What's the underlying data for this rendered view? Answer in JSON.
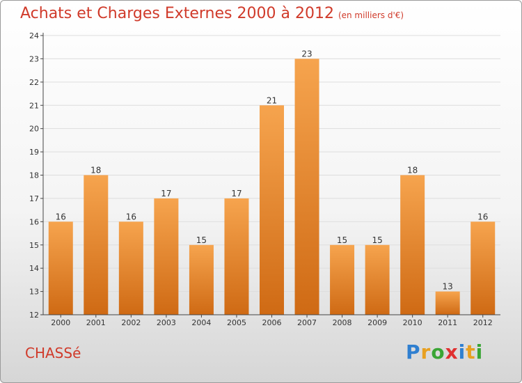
{
  "header": {
    "title": "Achats et Charges Externes 2000 à 2012",
    "subtitle": "(en milliers d'€)"
  },
  "footer": {
    "place": "CHASSé",
    "logo_text": "Proxiti",
    "logo_letters": [
      {
        "ch": "P",
        "color": "#2f7fd0"
      },
      {
        "ch": "r",
        "color": "#e8a020"
      },
      {
        "ch": "o",
        "color": "#3aa535"
      },
      {
        "ch": "x",
        "color": "#e03030"
      },
      {
        "ch": "i",
        "color": "#2f7fd0"
      },
      {
        "ch": "t",
        "color": "#e8a020"
      },
      {
        "ch": "i",
        "color": "#3aa535"
      }
    ]
  },
  "colors": {
    "bar_light": "#f6a44e",
    "bar_dark": "#cf6a14",
    "axis": "#444444",
    "grid": "#dddddd"
  },
  "chart_data": {
    "type": "bar",
    "title": "Achats et Charges Externes 2000 à 2012",
    "subtitle": "(en milliers d'€)",
    "categories": [
      "2000",
      "2001",
      "2002",
      "2003",
      "2004",
      "2005",
      "2006",
      "2007",
      "2008",
      "2009",
      "2010",
      "2011",
      "2012"
    ],
    "values": [
      16,
      18,
      16,
      17,
      15,
      17,
      21,
      23,
      15,
      15,
      18,
      13,
      16
    ],
    "data_labels": [
      "16",
      "18",
      "16",
      "17",
      "15",
      "17",
      "21",
      "23",
      "15",
      "15",
      "18",
      "13",
      "16"
    ],
    "ylim": [
      12,
      24
    ],
    "yticks": [
      "12",
      "13",
      "14",
      "15",
      "16",
      "17",
      "18",
      "19",
      "20",
      "21",
      "22",
      "23",
      "24"
    ],
    "grid": true
  }
}
